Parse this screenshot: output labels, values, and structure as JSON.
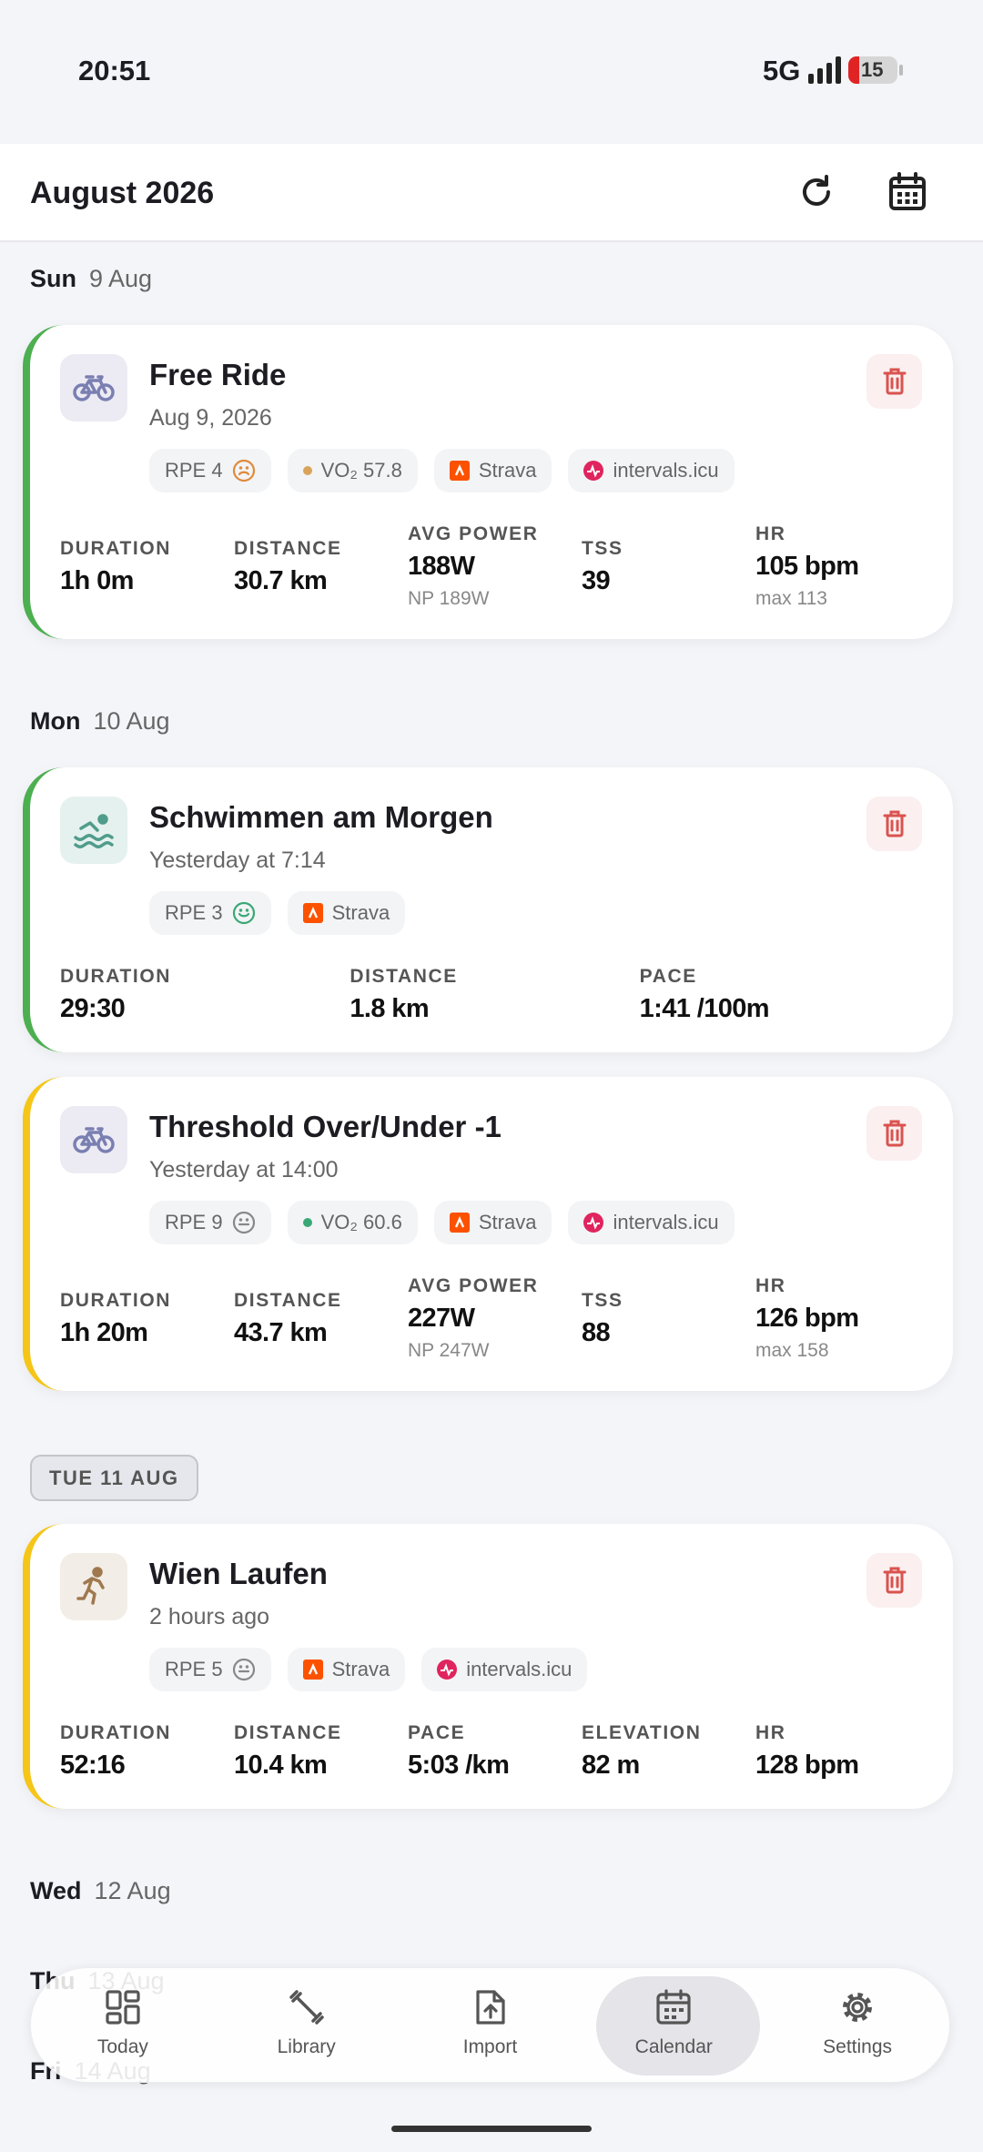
{
  "status": {
    "time": "20:51",
    "network": "5G",
    "battery": "15"
  },
  "header": {
    "title": "August 2026"
  },
  "days": [
    {
      "weekday": "Sun",
      "date": "9 Aug",
      "activities": [
        {
          "sport": "bike",
          "accent": "#4caf50",
          "title": "Free Ride",
          "subtitle": "Aug 9, 2026",
          "tags": [
            {
              "text": "RPE 4",
              "icon": "sad"
            },
            {
              "text": "VO₂ 57.8",
              "icon": "dot",
              "color": "#d9a45a"
            },
            {
              "text": "Strava",
              "icon": "strava"
            },
            {
              "text": "intervals.icu",
              "icon": "intervals"
            }
          ],
          "stats": [
            {
              "label": "DURATION",
              "value": "1h 0m"
            },
            {
              "label": "DISTANCE",
              "value": "30.7 km"
            },
            {
              "label": "AVG POWER",
              "value": "188W",
              "sub": "NP 189W"
            },
            {
              "label": "TSS",
              "value": "39"
            },
            {
              "label": "HR",
              "value": "105 bpm",
              "sub": "max 113"
            }
          ]
        }
      ]
    },
    {
      "weekday": "Mon",
      "date": "10 Aug",
      "activities": [
        {
          "sport": "swim",
          "accent": "#4caf50",
          "title": "Schwimmen am Morgen",
          "subtitle": "Yesterday at 7:14",
          "tags": [
            {
              "text": "RPE 3",
              "icon": "happy"
            },
            {
              "text": "Strava",
              "icon": "strava"
            }
          ],
          "stats": [
            {
              "label": "DURATION",
              "value": "29:30"
            },
            {
              "label": "DISTANCE",
              "value": "1.8 km"
            },
            {
              "label": "PACE",
              "value": "1:41 /100m"
            }
          ]
        },
        {
          "sport": "bike",
          "accent": "#f5c518",
          "title": "Threshold Over/Under -1",
          "subtitle": "Yesterday at 14:00",
          "tags": [
            {
              "text": "RPE 9",
              "icon": "neutral"
            },
            {
              "text": "VO₂ 60.6",
              "icon": "dot",
              "color": "#3aa876"
            },
            {
              "text": "Strava",
              "icon": "strava"
            },
            {
              "text": "intervals.icu",
              "icon": "intervals"
            }
          ],
          "stats": [
            {
              "label": "DURATION",
              "value": "1h 20m"
            },
            {
              "label": "DISTANCE",
              "value": "43.7 km"
            },
            {
              "label": "AVG POWER",
              "value": "227W",
              "sub": "NP 247W"
            },
            {
              "label": "TSS",
              "value": "88"
            },
            {
              "label": "HR",
              "value": "126 bpm",
              "sub": "max 158"
            }
          ]
        }
      ]
    },
    {
      "label": "TUE 11 AUG",
      "activities": [
        {
          "sport": "run",
          "accent": "#f5c518",
          "title": "Wien Laufen",
          "subtitle": "2 hours ago",
          "tags": [
            {
              "text": "RPE 5",
              "icon": "neutral"
            },
            {
              "text": "Strava",
              "icon": "strava"
            },
            {
              "text": "intervals.icu",
              "icon": "intervals"
            }
          ],
          "stats": [
            {
              "label": "DURATION",
              "value": "52:16"
            },
            {
              "label": "DISTANCE",
              "value": "10.4 km"
            },
            {
              "label": "PACE",
              "value": "5:03 /km"
            },
            {
              "label": "ELEVATION",
              "value": "82 m"
            },
            {
              "label": "HR",
              "value": "128 bpm"
            }
          ]
        }
      ]
    },
    {
      "weekday": "Wed",
      "date": "12 Aug",
      "activities": []
    },
    {
      "weekday": "Thu",
      "date": "13 Aug",
      "activities": []
    },
    {
      "weekday": "Fri",
      "date": "14 Aug",
      "activities": []
    }
  ],
  "nav": [
    {
      "label": "Today",
      "icon": "today"
    },
    {
      "label": "Library",
      "icon": "library"
    },
    {
      "label": "Import",
      "icon": "import"
    },
    {
      "label": "Calendar",
      "icon": "calendar",
      "active": true
    },
    {
      "label": "Settings",
      "icon": "settings"
    }
  ]
}
